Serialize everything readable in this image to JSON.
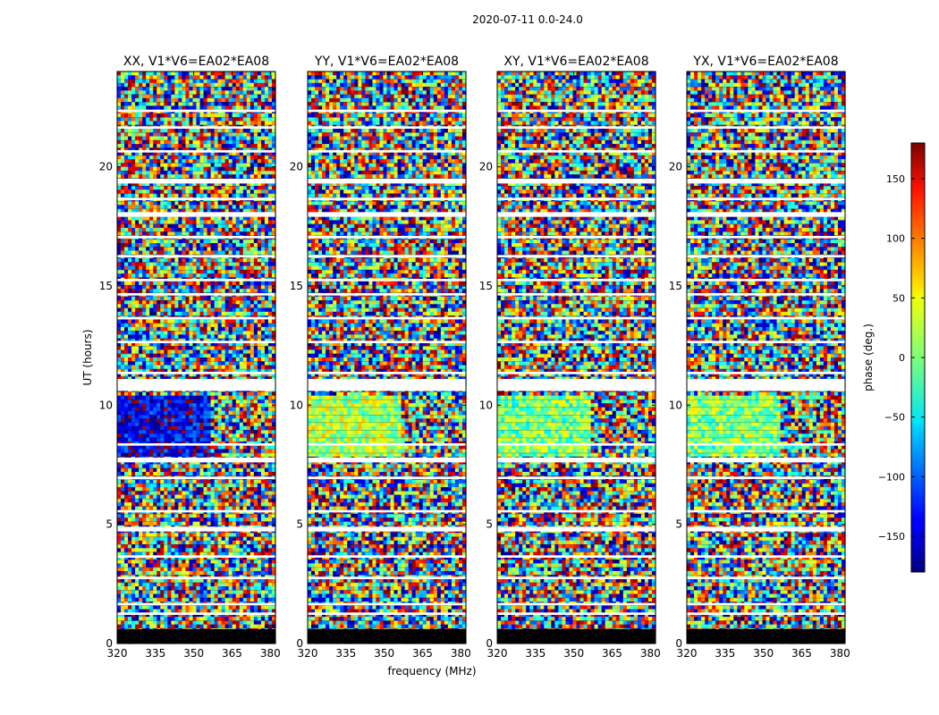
{
  "figure": {
    "suptitle": "2020-07-11 0.0-24.0",
    "xlabel": "frequency (MHz)",
    "ylabel": "UT (hours)"
  },
  "chart_data": {
    "type": "heatmap",
    "title": "2020-07-11 0.0-24.0",
    "xlabel": "frequency (MHz)",
    "ylabel": "UT (hours)",
    "xlim": [
      320,
      382
    ],
    "ylim": [
      0,
      24
    ],
    "xticks": [
      320,
      335,
      350,
      365,
      380
    ],
    "yticks": [
      0,
      5,
      10,
      15,
      20
    ],
    "colormap": "jet",
    "panels": [
      {
        "title": "XX, V1*V6=EA02*EA08",
        "correlation": "XX"
      },
      {
        "title": "YY, V1*V6=EA02*EA08",
        "correlation": "YY"
      },
      {
        "title": "XY, V1*V6=EA02*EA08",
        "correlation": "XY"
      },
      {
        "title": "YX, V1*V6=EA02*EA08",
        "correlation": "YX"
      }
    ],
    "flagged_gaps_hours": [
      [
        0.0,
        0.6
      ],
      [
        1.2,
        1.3
      ],
      [
        1.6,
        1.7
      ],
      [
        2.7,
        2.8
      ],
      [
        3.6,
        3.7
      ],
      [
        4.7,
        4.9
      ],
      [
        5.5,
        5.6
      ],
      [
        6.9,
        7.0
      ],
      [
        7.6,
        7.8
      ],
      [
        8.3,
        8.4
      ],
      [
        10.6,
        11.1
      ],
      [
        11.3,
        11.4
      ],
      [
        12.6,
        12.7
      ],
      [
        13.6,
        13.7
      ],
      [
        14.6,
        14.7
      ],
      [
        15.2,
        15.3
      ],
      [
        16.2,
        16.3
      ],
      [
        17.0,
        17.1
      ],
      [
        17.9,
        18.1
      ],
      [
        18.6,
        18.7
      ],
      [
        19.3,
        19.5
      ],
      [
        20.6,
        20.7
      ],
      [
        21.6,
        21.7
      ],
      [
        22.3,
        22.4
      ]
    ],
    "colorbar": {
      "label": "phase (deg.)",
      "range": [
        -180,
        180
      ],
      "ticks": [
        -150,
        -100,
        -50,
        0,
        50,
        100,
        150
      ],
      "tick_labels": [
        "−150",
        "−100",
        "−50",
        "0",
        "50",
        "100",
        "150"
      ]
    }
  }
}
